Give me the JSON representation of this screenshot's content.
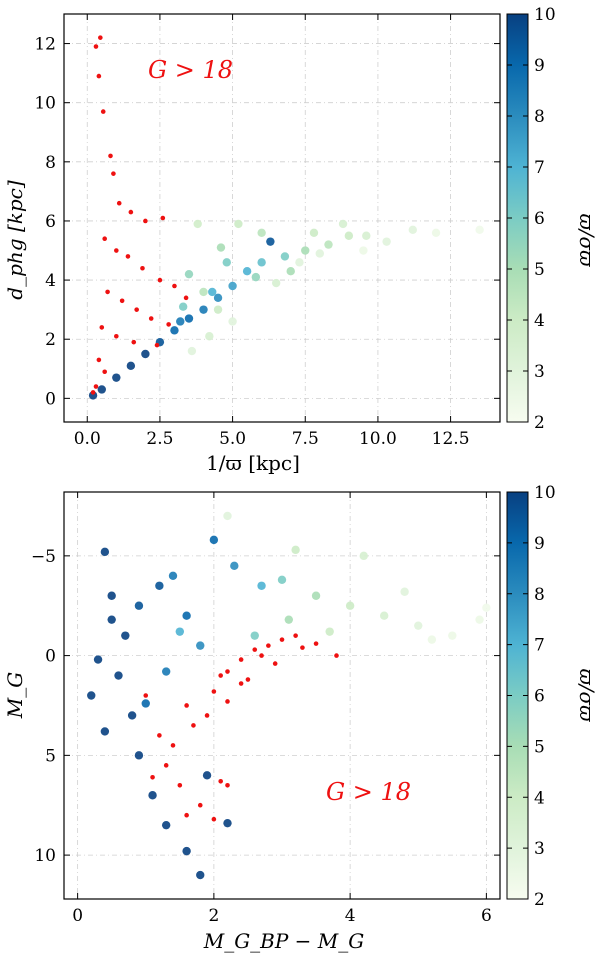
{
  "chart_data": [
    {
      "type": "scatter",
      "xlabel": "1/ϖ [kpc]",
      "ylabel": "d_phg [kpc]",
      "xlim": [
        -0.8,
        14.2
      ],
      "ylim": [
        -0.8,
        13.0
      ],
      "xticks": [
        0.0,
        2.5,
        5.0,
        7.5,
        10.0,
        12.5
      ],
      "xtick_labels": [
        "0.0",
        "2.5",
        "5.0",
        "7.5",
        "10.0",
        "12.5"
      ],
      "yticks": [
        0,
        2,
        4,
        6,
        8,
        10,
        12
      ],
      "ytick_labels": [
        "0",
        "2",
        "4",
        "6",
        "8",
        "10",
        "12"
      ],
      "annotation": "G > 18",
      "grid": true,
      "colorbar": {
        "label": "ϖ/σϖ",
        "min": 2,
        "max": 10,
        "ticks": [
          "2",
          "3",
          "4",
          "5",
          "6",
          "7",
          "8",
          "9",
          "10"
        ]
      },
      "series": [
        {
          "marker_color": "#ee1111",
          "points": [
            [
              0.3,
              11.9
            ],
            [
              0.45,
              12.2
            ],
            [
              0.4,
              10.9
            ],
            [
              0.55,
              9.7
            ],
            [
              0.8,
              8.2
            ],
            [
              0.9,
              7.6
            ],
            [
              1.1,
              6.6
            ],
            [
              1.5,
              6.3
            ],
            [
              2.0,
              6.0
            ],
            [
              2.6,
              6.1
            ],
            [
              0.6,
              5.4
            ],
            [
              1.0,
              5.0
            ],
            [
              1.4,
              4.8
            ],
            [
              1.9,
              4.4
            ],
            [
              2.5,
              4.0
            ],
            [
              3.0,
              3.8
            ],
            [
              3.4,
              3.4
            ],
            [
              0.7,
              3.6
            ],
            [
              1.2,
              3.3
            ],
            [
              1.7,
              3.0
            ],
            [
              2.2,
              2.7
            ],
            [
              2.8,
              2.5
            ],
            [
              0.5,
              2.4
            ],
            [
              1.0,
              2.1
            ],
            [
              1.6,
              1.9
            ],
            [
              2.4,
              1.8
            ],
            [
              0.4,
              1.3
            ],
            [
              0.6,
              0.9
            ],
            [
              0.3,
              0.4
            ],
            [
              0.2,
              0.2
            ]
          ]
        },
        {
          "marker_color_scale": "ϖ/σϖ",
          "points": [
            [
              0.2,
              0.1,
              10
            ],
            [
              0.5,
              0.3,
              10
            ],
            [
              1.0,
              0.7,
              10
            ],
            [
              1.5,
              1.1,
              10
            ],
            [
              2.0,
              1.5,
              10
            ],
            [
              2.5,
              1.9,
              9.5
            ],
            [
              3.0,
              2.3,
              9
            ],
            [
              3.5,
              2.7,
              9
            ],
            [
              4.0,
              3.0,
              8.5
            ],
            [
              4.5,
              3.4,
              8
            ],
            [
              5.0,
              3.8,
              7.5
            ],
            [
              5.5,
              4.3,
              7
            ],
            [
              6.0,
              4.6,
              6.5
            ],
            [
              6.3,
              5.3,
              9.5
            ],
            [
              4.3,
              3.6,
              7
            ],
            [
              3.2,
              2.6,
              8.5
            ],
            [
              6.8,
              4.8,
              6
            ],
            [
              7.5,
              5.0,
              5
            ],
            [
              8.3,
              5.2,
              4.5
            ],
            [
              9.0,
              5.5,
              4
            ],
            [
              9.6,
              5.5,
              3.5
            ],
            [
              10.3,
              5.3,
              3
            ],
            [
              11.2,
              5.7,
              3
            ],
            [
              12.0,
              5.6,
              2.5
            ],
            [
              13.5,
              5.7,
              2.3
            ],
            [
              7.8,
              5.6,
              4
            ],
            [
              8.8,
              5.9,
              3.5
            ],
            [
              5.2,
              5.9,
              4
            ],
            [
              6.0,
              5.6,
              4.5
            ],
            [
              3.8,
              5.9,
              3.8
            ],
            [
              4.6,
              5.1,
              5
            ],
            [
              5.8,
              4.1,
              5.5
            ],
            [
              7.0,
              4.3,
              5
            ],
            [
              4.8,
              4.6,
              6
            ],
            [
              3.5,
              4.2,
              5.5
            ],
            [
              4.0,
              3.6,
              4.5
            ],
            [
              4.5,
              3.0,
              4
            ],
            [
              5.0,
              2.6,
              3
            ],
            [
              4.2,
              2.1,
              3.5
            ],
            [
              3.6,
              1.6,
              3
            ],
            [
              3.3,
              3.1,
              6
            ],
            [
              6.5,
              3.9,
              3.5
            ],
            [
              7.3,
              4.6,
              3
            ],
            [
              8.0,
              4.9,
              3
            ],
            [
              9.5,
              5.0,
              2.5
            ]
          ]
        }
      ]
    },
    {
      "type": "scatter",
      "xlabel": "M_G_BP − M_G",
      "ylabel": "M_G",
      "xlim": [
        -0.2,
        6.2
      ],
      "ylim": [
        12.2,
        -8.2
      ],
      "y_inverted": true,
      "xticks": [
        0,
        2,
        4,
        6
      ],
      "xtick_labels": [
        "0",
        "2",
        "4",
        "6"
      ],
      "yticks": [
        -5,
        0,
        5,
        10
      ],
      "ytick_labels": [
        "−5",
        "0",
        "5",
        "10"
      ],
      "annotation": "G > 18",
      "grid": true,
      "colorbar": {
        "label": "ϖ/σϖ",
        "min": 2,
        "max": 10,
        "ticks": [
          "2",
          "3",
          "4",
          "5",
          "6",
          "7",
          "8",
          "9",
          "10"
        ]
      },
      "series": [
        {
          "marker_color": "#ee1111",
          "points": [
            [
              1.0,
              2.0
            ],
            [
              1.2,
              4.0
            ],
            [
              1.3,
              5.5
            ],
            [
              1.5,
              6.5
            ],
            [
              1.8,
              7.5
            ],
            [
              2.0,
              8.2
            ],
            [
              2.2,
              6.5
            ],
            [
              1.6,
              2.5
            ],
            [
              2.0,
              1.8
            ],
            [
              2.2,
              0.8
            ],
            [
              2.4,
              0.2
            ],
            [
              2.6,
              -0.3
            ],
            [
              2.8,
              -0.5
            ],
            [
              3.0,
              -0.8
            ],
            [
              3.2,
              -1.0
            ],
            [
              3.5,
              -0.6
            ],
            [
              2.9,
              0.4
            ],
            [
              2.5,
              1.2
            ],
            [
              2.2,
              2.3
            ],
            [
              1.9,
              3.0
            ],
            [
              1.4,
              4.5
            ],
            [
              1.1,
              6.1
            ],
            [
              2.1,
              1.0
            ],
            [
              2.7,
              0.0
            ],
            [
              3.3,
              -0.4
            ],
            [
              3.8,
              0.0
            ],
            [
              1.7,
              3.5
            ],
            [
              2.4,
              1.4
            ],
            [
              1.6,
              8.0
            ],
            [
              2.1,
              6.3
            ]
          ]
        },
        {
          "marker_color_scale": "ϖ/σϖ",
          "points": [
            [
              0.4,
              -5.2,
              10
            ],
            [
              0.5,
              -3.0,
              10
            ],
            [
              0.7,
              -1.0,
              10
            ],
            [
              0.6,
              1.0,
              10
            ],
            [
              0.8,
              3.0,
              10
            ],
            [
              0.9,
              5.0,
              10
            ],
            [
              1.1,
              7.0,
              10
            ],
            [
              1.3,
              8.5,
              10
            ],
            [
              1.6,
              9.8,
              10
            ],
            [
              1.8,
              11.0,
              10
            ],
            [
              1.2,
              -3.5,
              9.5
            ],
            [
              1.6,
              -2.0,
              9
            ],
            [
              2.0,
              -5.8,
              9
            ],
            [
              2.3,
              -4.5,
              8
            ],
            [
              2.7,
              -3.5,
              7
            ],
            [
              3.0,
              -3.8,
              6
            ],
            [
              3.5,
              -3.0,
              5
            ],
            [
              4.0,
              -2.5,
              4
            ],
            [
              4.5,
              -2.0,
              3.5
            ],
            [
              5.0,
              -1.5,
              3
            ],
            [
              5.5,
              -1.0,
              2.5
            ],
            [
              5.9,
              -1.8,
              2.5
            ],
            [
              6.0,
              -2.4,
              2.3
            ],
            [
              2.2,
              -7.0,
              3
            ],
            [
              4.2,
              -5.0,
              3.5
            ],
            [
              3.2,
              -5.3,
              4
            ],
            [
              2.6,
              -1.0,
              6
            ],
            [
              3.1,
              -1.8,
              5
            ],
            [
              1.8,
              -0.5,
              8
            ],
            [
              1.3,
              0.8,
              8.5
            ],
            [
              1.0,
              2.4,
              9
            ],
            [
              0.5,
              -1.8,
              10
            ],
            [
              0.3,
              0.2,
              10
            ],
            [
              0.4,
              3.8,
              10
            ],
            [
              0.2,
              2.0,
              10
            ],
            [
              0.9,
              -2.5,
              9.5
            ],
            [
              1.4,
              -4.0,
              8.5
            ],
            [
              4.8,
              -3.2,
              3
            ],
            [
              5.2,
              -0.8,
              2.5
            ],
            [
              3.7,
              -1.2,
              4
            ],
            [
              1.9,
              6.0,
              10
            ],
            [
              2.2,
              8.4,
              10
            ],
            [
              1.5,
              -1.2,
              7
            ]
          ]
        }
      ]
    }
  ]
}
